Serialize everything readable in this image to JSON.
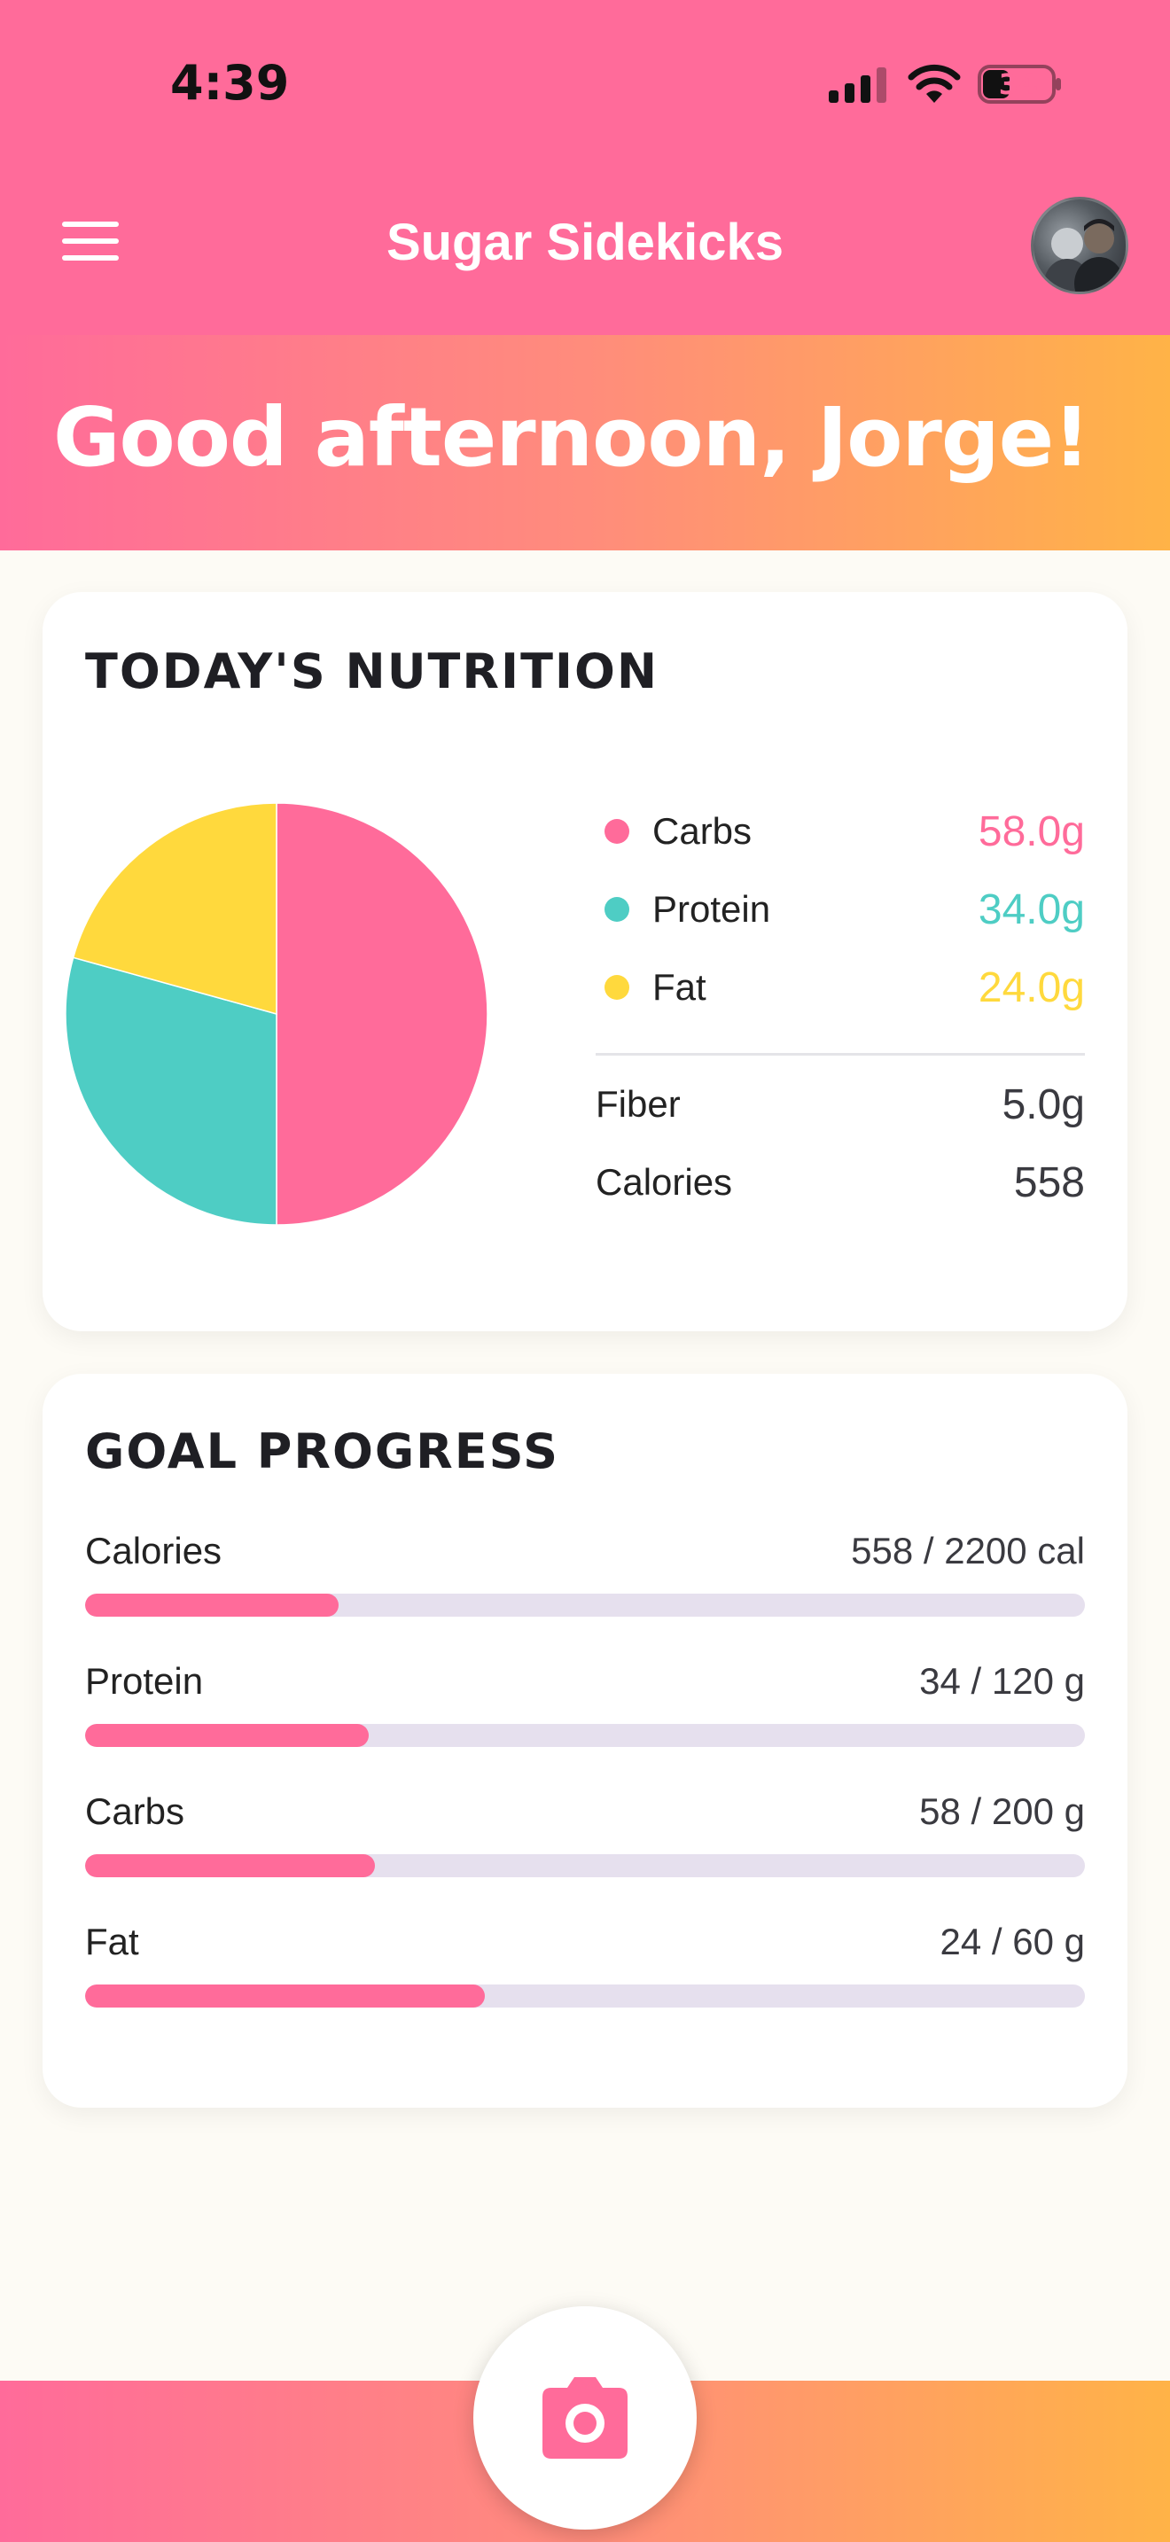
{
  "status_bar": {
    "time": "4:39",
    "battery": "34"
  },
  "header": {
    "title": "Sugar Sidekicks",
    "menu_icon": "menu-icon",
    "avatar_icon": "avatar"
  },
  "greeting": {
    "text": "Good afternoon, Jorge!"
  },
  "colors": {
    "brand_pink": "#FF6B9A",
    "gradient_end": "#FFB347",
    "carbs": "#FF6B9A",
    "protein": "#4ECDC4",
    "fat": "#FFD93D",
    "track": "#E6E0EE"
  },
  "nutrition": {
    "title": "TODAY'S NUTRITION",
    "legend": [
      {
        "label": "Carbs",
        "value": "58.0g",
        "color": "#FF6B9A"
      },
      {
        "label": "Protein",
        "value": "34.0g",
        "color": "#4ECDC4"
      },
      {
        "label": "Fat",
        "value": "24.0g",
        "color": "#FFD93D"
      }
    ],
    "fiber": {
      "label": "Fiber",
      "value": "5.0g"
    },
    "calories": {
      "label": "Calories",
      "value": "558"
    }
  },
  "chart_data": {
    "type": "pie",
    "categories": [
      "Carbs",
      "Protein",
      "Fat"
    ],
    "values": [
      58.0,
      34.0,
      24.0
    ],
    "colors": [
      "#FF6B9A",
      "#4ECDC4",
      "#FFD93D"
    ],
    "title": "",
    "legend_placement": "right"
  },
  "goals": {
    "title": "GOAL PROGRESS",
    "items": [
      {
        "label": "Calories",
        "value": "558 / 2200 cal",
        "current": 558,
        "target": 2200
      },
      {
        "label": "Protein",
        "value": "34 / 120 g",
        "current": 34,
        "target": 120
      },
      {
        "label": "Carbs",
        "value": "58 / 200 g",
        "current": 58,
        "target": 200
      },
      {
        "label": "Fat",
        "value": "24 / 60 g",
        "current": 24,
        "target": 60
      }
    ]
  },
  "bottom": {
    "camera_icon": "camera-icon"
  }
}
